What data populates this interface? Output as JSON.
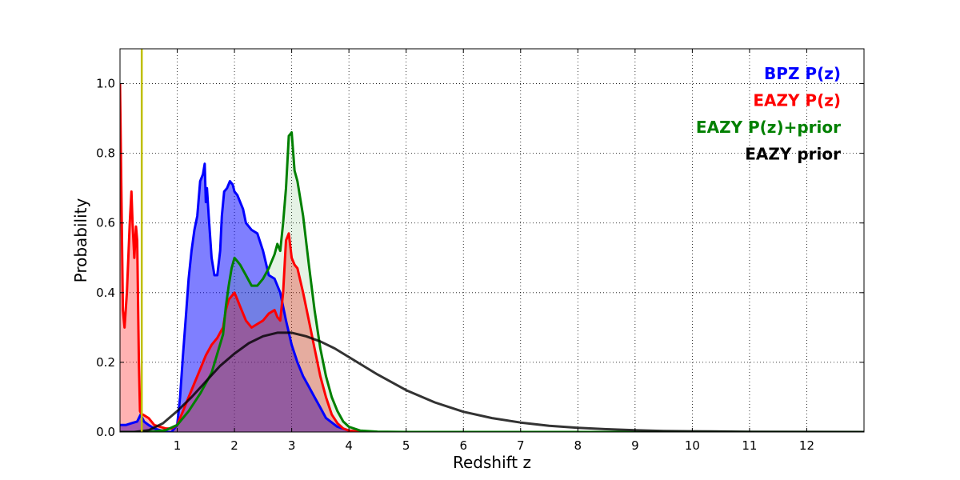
{
  "chart_data": {
    "type": "area",
    "title": "",
    "xlabel": "Redshift z",
    "ylabel": "Probability",
    "xlim": [
      0,
      13
    ],
    "ylim": [
      0,
      1.1
    ],
    "x_ticks": [
      1,
      2,
      3,
      4,
      5,
      6,
      7,
      8,
      9,
      10,
      11,
      12
    ],
    "y_ticks": [
      0.0,
      0.2,
      0.4,
      0.6,
      0.8,
      1.0
    ],
    "y_tick_labels": [
      "0.0",
      "0.2",
      "0.4",
      "0.6",
      "0.8",
      "1.0"
    ],
    "grid": true,
    "legend_position": "top-right",
    "legend_style": "colored text",
    "vertical_line": {
      "x": 0.38,
      "color": "#bfbf00"
    },
    "series": [
      {
        "name": "BPZ P(z)",
        "color": "#0000ff",
        "fill": "#0000ff",
        "fill_opacity": 0.5,
        "x": [
          0,
          0.1,
          0.2,
          0.3,
          0.36,
          0.42,
          0.5,
          0.6,
          0.7,
          0.8,
          0.9,
          1.0,
          1.05,
          1.1,
          1.15,
          1.2,
          1.25,
          1.3,
          1.35,
          1.4,
          1.45,
          1.48,
          1.5,
          1.52,
          1.55,
          1.6,
          1.65,
          1.7,
          1.75,
          1.78,
          1.82,
          1.87,
          1.92,
          1.97,
          2.0,
          2.05,
          2.1,
          2.15,
          2.2,
          2.3,
          2.4,
          2.5,
          2.6,
          2.7,
          2.8,
          2.9,
          3.0,
          3.1,
          3.2,
          3.3,
          3.4,
          3.5,
          3.6,
          3.8,
          4.0,
          4.2,
          4.5,
          5,
          6,
          8,
          10,
          12,
          13
        ],
        "values": [
          0.02,
          0.02,
          0.025,
          0.03,
          0.05,
          0.03,
          0.02,
          0.01,
          0.005,
          0.0,
          0.0,
          0.02,
          0.1,
          0.22,
          0.33,
          0.44,
          0.52,
          0.58,
          0.62,
          0.72,
          0.74,
          0.77,
          0.66,
          0.7,
          0.62,
          0.5,
          0.45,
          0.45,
          0.52,
          0.62,
          0.69,
          0.7,
          0.72,
          0.71,
          0.69,
          0.68,
          0.66,
          0.64,
          0.6,
          0.58,
          0.57,
          0.52,
          0.45,
          0.44,
          0.4,
          0.32,
          0.25,
          0.2,
          0.16,
          0.13,
          0.1,
          0.07,
          0.04,
          0.015,
          0.004,
          0.001,
          0.0,
          0.0,
          0.0,
          0.0,
          0.0,
          0.0,
          0.0
        ]
      },
      {
        "name": "EAZY P(z)",
        "color": "#ff0000",
        "fill": "#ff0000",
        "fill_opacity": 0.3,
        "x": [
          0,
          0.02,
          0.05,
          0.08,
          0.12,
          0.17,
          0.2,
          0.22,
          0.25,
          0.28,
          0.3,
          0.33,
          0.35,
          0.38,
          0.4,
          0.5,
          0.6,
          0.7,
          0.8,
          0.9,
          1.0,
          1.1,
          1.2,
          1.3,
          1.4,
          1.5,
          1.6,
          1.7,
          1.8,
          1.85,
          1.9,
          1.95,
          2.0,
          2.05,
          2.1,
          2.2,
          2.3,
          2.4,
          2.5,
          2.6,
          2.7,
          2.75,
          2.8,
          2.85,
          2.9,
          2.95,
          3.0,
          3.05,
          3.1,
          3.2,
          3.3,
          3.4,
          3.5,
          3.6,
          3.7,
          3.8,
          3.9,
          4.0,
          4.2,
          4.5,
          5,
          13
        ],
        "values": [
          1.0,
          0.75,
          0.35,
          0.3,
          0.4,
          0.6,
          0.69,
          0.6,
          0.5,
          0.59,
          0.55,
          0.2,
          0.06,
          0.05,
          0.05,
          0.04,
          0.02,
          0.015,
          0.01,
          0.01,
          0.02,
          0.06,
          0.1,
          0.14,
          0.18,
          0.22,
          0.25,
          0.27,
          0.3,
          0.35,
          0.38,
          0.39,
          0.4,
          0.38,
          0.36,
          0.32,
          0.3,
          0.31,
          0.32,
          0.34,
          0.35,
          0.33,
          0.32,
          0.4,
          0.55,
          0.57,
          0.5,
          0.48,
          0.47,
          0.4,
          0.32,
          0.24,
          0.16,
          0.1,
          0.05,
          0.025,
          0.01,
          0.004,
          0.001,
          0.0,
          0.0,
          0.0
        ]
      },
      {
        "name": "EAZY P(z)+prior",
        "color": "#008000",
        "fill": "#008000",
        "fill_opacity": 0.1,
        "x": [
          0,
          0.5,
          0.8,
          1.0,
          1.2,
          1.4,
          1.6,
          1.8,
          1.85,
          1.9,
          1.95,
          2.0,
          2.05,
          2.1,
          2.2,
          2.3,
          2.4,
          2.5,
          2.6,
          2.7,
          2.75,
          2.8,
          2.85,
          2.9,
          2.95,
          3.0,
          3.05,
          3.1,
          3.2,
          3.3,
          3.4,
          3.5,
          3.6,
          3.7,
          3.8,
          3.9,
          4.0,
          4.2,
          4.5,
          5,
          13
        ],
        "values": [
          0.0,
          0.0,
          0.005,
          0.02,
          0.06,
          0.11,
          0.17,
          0.28,
          0.36,
          0.42,
          0.47,
          0.5,
          0.49,
          0.48,
          0.45,
          0.42,
          0.42,
          0.44,
          0.47,
          0.51,
          0.54,
          0.52,
          0.6,
          0.7,
          0.85,
          0.86,
          0.75,
          0.72,
          0.62,
          0.48,
          0.35,
          0.24,
          0.16,
          0.1,
          0.06,
          0.03,
          0.015,
          0.004,
          0.001,
          0.0,
          0.0
        ]
      },
      {
        "name": "EAZY prior",
        "color": "#000000",
        "fill": null,
        "fill_opacity": 0,
        "x": [
          0,
          0.25,
          0.5,
          0.75,
          1.0,
          1.25,
          1.5,
          1.75,
          2.0,
          2.25,
          2.5,
          2.75,
          3.0,
          3.25,
          3.5,
          3.75,
          4.0,
          4.5,
          5.0,
          5.5,
          6.0,
          6.5,
          7.0,
          7.5,
          8.0,
          8.5,
          9.0,
          9.5,
          10.0,
          10.5,
          11.0,
          12.0,
          13.0
        ],
        "values": [
          0.0,
          0.0,
          0.005,
          0.025,
          0.06,
          0.1,
          0.145,
          0.19,
          0.225,
          0.255,
          0.275,
          0.285,
          0.285,
          0.275,
          0.26,
          0.24,
          0.215,
          0.165,
          0.12,
          0.085,
          0.058,
          0.04,
          0.027,
          0.018,
          0.012,
          0.008,
          0.005,
          0.003,
          0.002,
          0.0013,
          0.0008,
          0.0003,
          0.0001
        ]
      }
    ]
  }
}
